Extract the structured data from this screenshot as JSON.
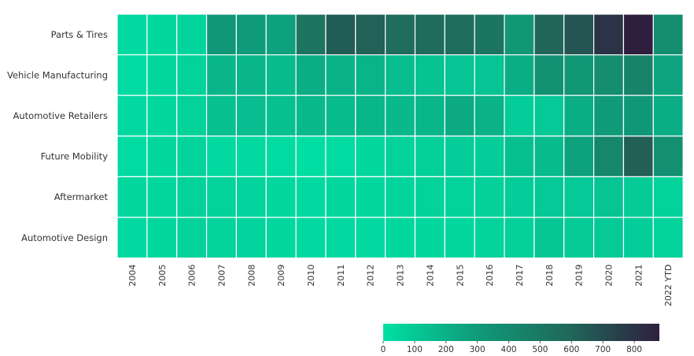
{
  "chart_data": {
    "type": "heatmap",
    "title": "",
    "xlabel": "",
    "ylabel": "",
    "rows": [
      "Parts & Tires",
      "Vehicle Manufacturing",
      "Automotive Retailers",
      "Future Mobility",
      "Aftermarket",
      "Automotive Design"
    ],
    "columns": [
      "2004",
      "2005",
      "2006",
      "2007",
      "2008",
      "2009",
      "2010",
      "2011",
      "2012",
      "2013",
      "2014",
      "2015",
      "2016",
      "2017",
      "2018",
      "2019",
      "2020",
      "2021",
      "2022 YTD"
    ],
    "values": [
      [
        30,
        40,
        50,
        320,
        300,
        270,
        530,
        640,
        620,
        570,
        580,
        570,
        520,
        330,
        600,
        670,
        800,
        880,
        380
      ],
      [
        20,
        40,
        60,
        180,
        180,
        160,
        220,
        200,
        190,
        150,
        130,
        120,
        120,
        220,
        360,
        330,
        380,
        440,
        260
      ],
      [
        30,
        40,
        60,
        140,
        150,
        140,
        170,
        160,
        180,
        170,
        180,
        230,
        200,
        80,
        100,
        220,
        300,
        320,
        220
      ],
      [
        20,
        40,
        50,
        30,
        30,
        20,
        10,
        20,
        40,
        60,
        70,
        80,
        80,
        140,
        160,
        270,
        420,
        630,
        370
      ],
      [
        40,
        40,
        60,
        60,
        50,
        40,
        30,
        40,
        40,
        50,
        60,
        60,
        70,
        80,
        100,
        100,
        120,
        90,
        60
      ],
      [
        30,
        40,
        60,
        60,
        50,
        40,
        30,
        30,
        30,
        40,
        40,
        40,
        60,
        70,
        110,
        90,
        100,
        80,
        60
      ]
    ],
    "colorbar": {
      "range": [
        0,
        880
      ],
      "ticks": [
        0,
        100,
        200,
        300,
        400,
        500,
        600,
        700,
        800
      ],
      "colors": [
        "#00e0a4",
        "#0f9c7a",
        "#1f6a5b",
        "#2f1f3f"
      ]
    }
  }
}
